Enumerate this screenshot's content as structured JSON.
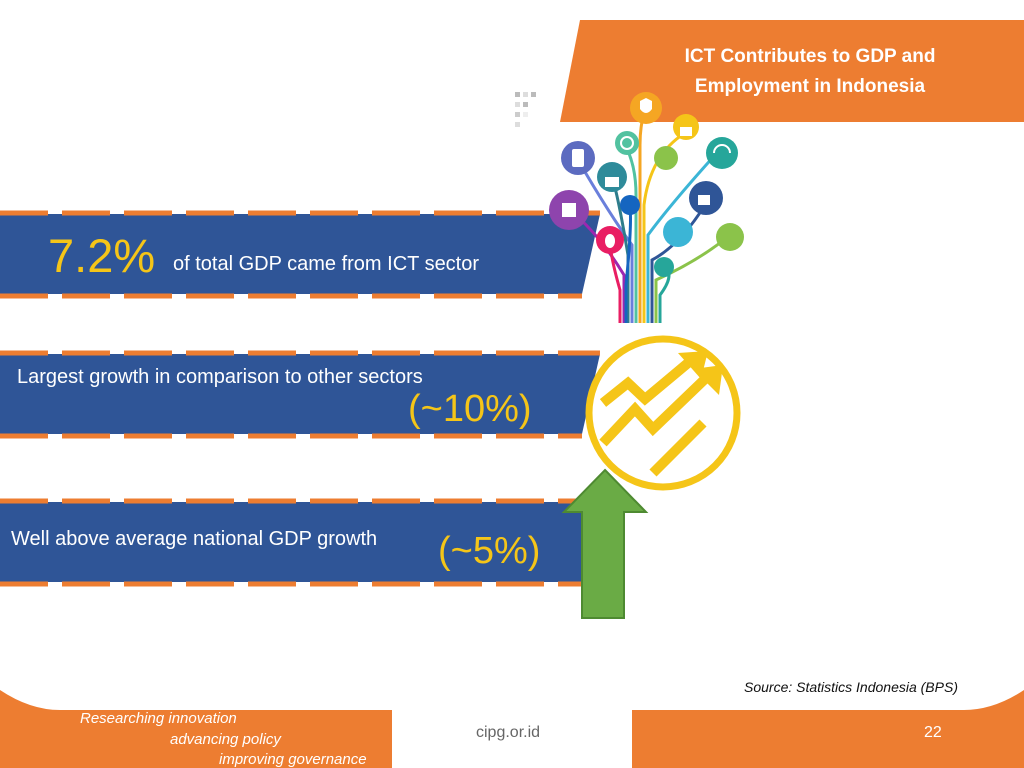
{
  "title": {
    "line1": "ICT Contributes to GDP and",
    "line2": "Employment in Indonesia"
  },
  "stats": [
    {
      "value": "7.2%",
      "text": "of total GDP came from ICT sector"
    },
    {
      "text": "Largest growth in comparison to other sectors",
      "value": "(~10%)"
    },
    {
      "text": "Well above average national GDP growth",
      "value": "(~5%)"
    }
  ],
  "source": "Source: Statistics Indonesia (BPS)",
  "footer": {
    "tagline": [
      "Researching innovation",
      "advancing policy",
      "improving governance"
    ],
    "url": "cipg.or.id",
    "page_number": "22"
  },
  "colors": {
    "orange": "#ED7D31",
    "blue": "#2F5597",
    "yellow": "#F5C518",
    "green": "#6AAB45"
  },
  "icons": [
    "security-shield-icon",
    "lock-icon",
    "wifi-icon",
    "key-icon",
    "cloud-sync-icon",
    "mobile-icon",
    "unlock-icon",
    "power-icon",
    "phone-lock-icon",
    "mouse-icon",
    "database-icon",
    "block-icon",
    "growth-chart-icon",
    "up-arrow-icon"
  ]
}
